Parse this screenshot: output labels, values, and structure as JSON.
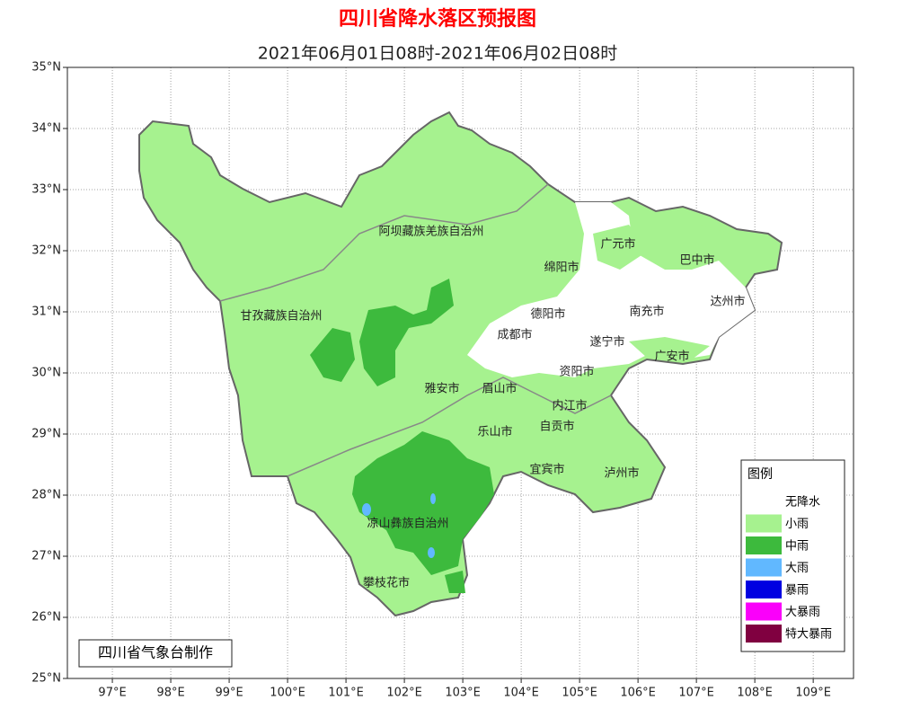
{
  "map": {
    "title": "四川省降水落区预报图",
    "subtitle": "2021年06月01日08时-2021年06月02日08时",
    "xlim": [
      96.23,
      109.69
    ],
    "ylim": [
      25,
      35
    ],
    "xticks": [
      {
        "value": 97,
        "label": "97°E"
      },
      {
        "value": 98,
        "label": "98°E"
      },
      {
        "value": 99,
        "label": "99°E"
      },
      {
        "value": 100,
        "label": "100°E"
      },
      {
        "value": 101,
        "label": "101°E"
      },
      {
        "value": 102,
        "label": "102°E"
      },
      {
        "value": 103,
        "label": "103°E"
      },
      {
        "value": 104,
        "label": "104°E"
      },
      {
        "value": 105,
        "label": "105°E"
      },
      {
        "value": 106,
        "label": "106°E"
      },
      {
        "value": 107,
        "label": "107°E"
      },
      {
        "value": 108,
        "label": "108°E"
      },
      {
        "value": 109,
        "label": "109°E"
      }
    ],
    "yticks": [
      {
        "value": 25,
        "label": "25°N"
      },
      {
        "value": 26,
        "label": "26°N"
      },
      {
        "value": 27,
        "label": "27°N"
      },
      {
        "value": 28,
        "label": "28°N"
      },
      {
        "value": 29,
        "label": "29°N"
      },
      {
        "value": 30,
        "label": "30°N"
      },
      {
        "value": 31,
        "label": "31°N"
      },
      {
        "value": 32,
        "label": "32°N"
      },
      {
        "value": 33,
        "label": "33°N"
      },
      {
        "value": 34,
        "label": "34°N"
      },
      {
        "value": 35,
        "label": "35°N"
      }
    ],
    "places": [
      "阿坝藏族羌族自治州",
      "广元市",
      "巴中市",
      "绵阳市",
      "甘孜藏族自治州",
      "德阳市",
      "南充市",
      "达州市",
      "成都市",
      "遂宁市",
      "广安市",
      "资阳市",
      "雅安市",
      "眉山市",
      "内江市",
      "乐山市",
      "自贡市",
      "宜宾市",
      "泸州市",
      "凉山彝族自治州",
      "攀枝花市"
    ],
    "credit": "四川省气象台制作",
    "legend": {
      "title": "图例",
      "items": [
        {
          "label": "无降水",
          "color": "#ffffff"
        },
        {
          "label": "小雨",
          "color": "#a6f28f"
        },
        {
          "label": "中雨",
          "color": "#3dba3d"
        },
        {
          "label": "大雨",
          "color": "#61b8ff"
        },
        {
          "label": "暴雨",
          "color": "#0000e1"
        },
        {
          "label": "大暴雨",
          "color": "#fa00fa"
        },
        {
          "label": "特大暴雨",
          "color": "#800040"
        }
      ]
    }
  }
}
